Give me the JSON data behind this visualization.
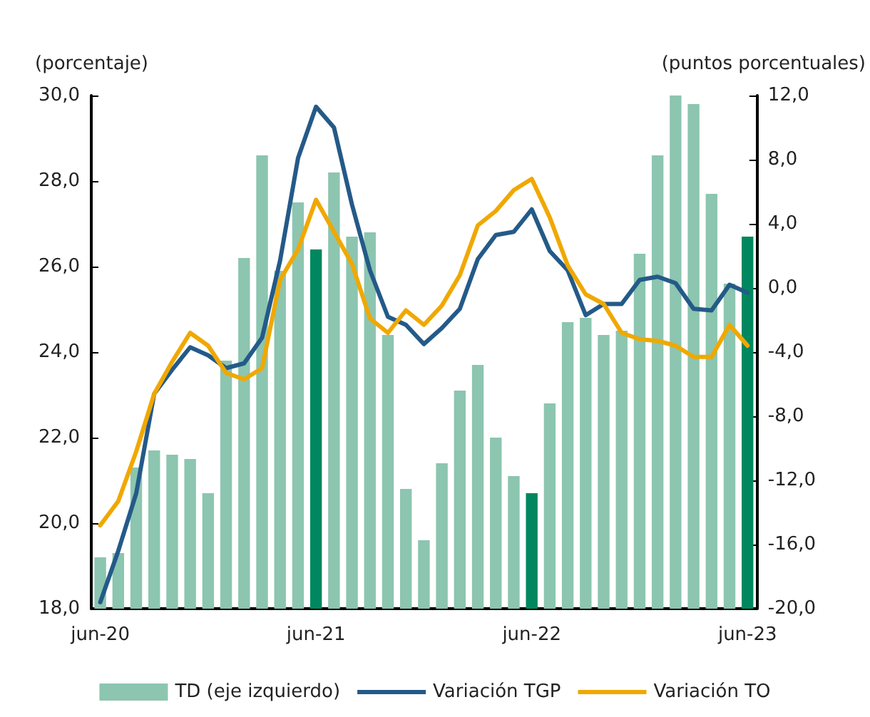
{
  "chart_data": {
    "type": "bar",
    "ylabel": "(porcentaje)",
    "y2label": "(puntos porcentuales)",
    "categories": [
      "jun-20",
      null,
      null,
      null,
      null,
      null,
      null,
      null,
      null,
      null,
      null,
      null,
      "jun-21",
      null,
      null,
      null,
      null,
      null,
      null,
      null,
      null,
      null,
      null,
      null,
      "jun-22",
      null,
      null,
      null,
      null,
      null,
      null,
      null,
      null,
      null,
      null,
      null,
      "jun-23"
    ],
    "series": [
      {
        "name": "TD (eje izquierdo)",
        "color": "#8cc5b0",
        "colors": [
          "#8cc5b0",
          "#8cc5b0",
          "#8cc5b0",
          "#8cc5b0",
          "#8cc5b0",
          "#8cc5b0",
          "#8cc5b0",
          "#8cc5b0",
          "#8cc5b0",
          "#8cc5b0",
          "#8cc5b0",
          "#8cc5b0",
          "#00875f",
          "#8cc5b0",
          "#8cc5b0",
          "#8cc5b0",
          "#8cc5b0",
          "#8cc5b0",
          "#8cc5b0",
          "#8cc5b0",
          "#8cc5b0",
          "#8cc5b0",
          "#8cc5b0",
          "#8cc5b0",
          "#00875f",
          "#8cc5b0",
          "#8cc5b0",
          "#8cc5b0",
          "#8cc5b0",
          "#8cc5b0",
          "#8cc5b0",
          "#8cc5b0",
          "#8cc5b0",
          "#8cc5b0",
          "#8cc5b0",
          "#8cc5b0",
          "#00875f"
        ],
        "values": [
          19.2,
          19.3,
          21.3,
          21.7,
          21.6,
          21.5,
          20.7,
          23.8,
          26.2,
          28.6,
          25.9,
          27.5,
          26.4,
          28.2,
          26.7,
          26.8,
          24.4,
          20.8,
          19.6,
          21.4,
          23.1,
          23.7,
          22.0,
          21.1,
          20.7,
          22.8,
          24.7,
          24.8,
          24.4,
          24.5,
          26.3,
          28.6,
          30.0,
          29.8,
          27.7,
          25.6,
          26.7
        ]
      },
      {
        "name": "Variación TGP",
        "type": "line",
        "axis": "y2",
        "color": "#245a88",
        "values": [
          -19.6,
          -16.4,
          -12.8,
          -6.6,
          -5.1,
          -3.7,
          -4.2,
          -5.0,
          -4.7,
          -3.1,
          1.7,
          8.1,
          11.3,
          10.0,
          5.2,
          1.1,
          -1.8,
          -2.3,
          -3.5,
          -2.5,
          -1.3,
          1.8,
          3.3,
          3.5,
          4.9,
          2.3,
          1.1,
          -1.7,
          -1.0,
          -1.0,
          0.5,
          0.7,
          0.3,
          -1.3,
          -1.4,
          0.2,
          -0.3
        ]
      },
      {
        "name": "Variación TO",
        "type": "line",
        "axis": "y2",
        "color": "#f0a800",
        "values": [
          -14.8,
          -13.3,
          -10.2,
          -6.6,
          -4.6,
          -2.8,
          -3.6,
          -5.3,
          -5.7,
          -5.0,
          0.5,
          2.4,
          5.5,
          3.5,
          1.5,
          -1.9,
          -2.8,
          -1.4,
          -2.3,
          -1.1,
          0.8,
          3.9,
          4.8,
          6.1,
          6.8,
          4.4,
          1.4,
          -0.4,
          -1.0,
          -2.8,
          -3.2,
          -3.3,
          -3.6,
          -4.3,
          -4.3,
          -2.3,
          -3.6
        ]
      }
    ],
    "ylim": [
      18,
      30
    ],
    "yticks": [
      {
        "value": 18,
        "label": "18,0"
      },
      {
        "value": 20,
        "label": "20,0"
      },
      {
        "value": 22,
        "label": "22,0"
      },
      {
        "value": 24,
        "label": "24,0"
      },
      {
        "value": 26,
        "label": "26,0"
      },
      {
        "value": 28,
        "label": "28,0"
      },
      {
        "value": 30,
        "label": "30,0"
      }
    ],
    "y2lim": [
      -20,
      12
    ],
    "y2ticks": [
      {
        "value": -20,
        "label": "-20,0"
      },
      {
        "value": -16,
        "label": "-16,0"
      },
      {
        "value": -12,
        "label": "-12,0"
      },
      {
        "value": -8,
        "label": "-8,0"
      },
      {
        "value": -4,
        "label": "-4,0"
      },
      {
        "value": 0,
        "label": "0,0"
      },
      {
        "value": 4,
        "label": "4,0"
      },
      {
        "value": 8,
        "label": "8,0"
      },
      {
        "value": 12,
        "label": "12,0"
      }
    ],
    "grid": false,
    "legend": "bottom",
    "marker": "none",
    "line_style": "solid"
  }
}
